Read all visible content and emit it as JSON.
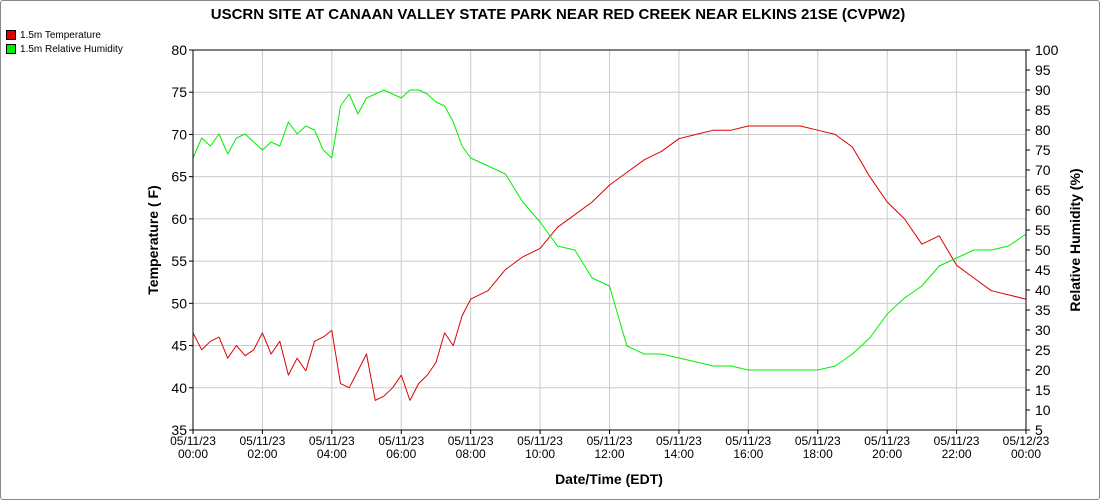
{
  "chart_data": {
    "type": "line",
    "title": "USCRN SITE AT CANAAN VALLEY STATE PARK NEAR RED CREEK NEAR ELKINS 21SE (CVPW2)",
    "xlabel": "Date/Time (EDT)",
    "ylabel_left": "Temperature ( F)",
    "ylabel_right": "Relative Humidity (%)",
    "x_ticks": [
      {
        "date": "05/11/23",
        "time": "00:00"
      },
      {
        "date": "05/11/23",
        "time": "02:00"
      },
      {
        "date": "05/11/23",
        "time": "04:00"
      },
      {
        "date": "05/11/23",
        "time": "06:00"
      },
      {
        "date": "05/11/23",
        "time": "08:00"
      },
      {
        "date": "05/11/23",
        "time": "10:00"
      },
      {
        "date": "05/11/23",
        "time": "12:00"
      },
      {
        "date": "05/11/23",
        "time": "14:00"
      },
      {
        "date": "05/11/23",
        "time": "16:00"
      },
      {
        "date": "05/11/23",
        "time": "18:00"
      },
      {
        "date": "05/11/23",
        "time": "20:00"
      },
      {
        "date": "05/11/23",
        "time": "22:00"
      },
      {
        "date": "05/12/23",
        "time": "00:00"
      }
    ],
    "xlim_hours": [
      0,
      24
    ],
    "ylim_left": [
      35,
      80
    ],
    "yticks_left": [
      35,
      40,
      45,
      50,
      55,
      60,
      65,
      70,
      75,
      80
    ],
    "ylim_right": [
      5,
      100
    ],
    "yticks_right": [
      5,
      10,
      15,
      20,
      25,
      30,
      35,
      40,
      45,
      50,
      55,
      60,
      65,
      70,
      75,
      80,
      85,
      90,
      95,
      100
    ],
    "grid": true,
    "legend_position": "top-left",
    "series": [
      {
        "name": "1.5m Temperature",
        "color": "#dd0000",
        "axis": "left",
        "x": [
          0.0,
          0.25,
          0.5,
          0.75,
          1.0,
          1.25,
          1.5,
          1.75,
          2.0,
          2.25,
          2.5,
          2.75,
          3.0,
          3.25,
          3.5,
          3.75,
          4.0,
          4.25,
          4.5,
          4.75,
          5.0,
          5.25,
          5.5,
          5.75,
          6.0,
          6.25,
          6.5,
          6.75,
          7.0,
          7.25,
          7.5,
          7.75,
          8.0,
          8.5,
          9.0,
          9.5,
          10.0,
          10.5,
          11.0,
          11.5,
          12.0,
          12.5,
          13.0,
          13.5,
          14.0,
          14.5,
          15.0,
          15.5,
          16.0,
          16.5,
          17.0,
          17.5,
          18.0,
          18.5,
          19.0,
          19.5,
          20.0,
          20.5,
          21.0,
          21.5,
          22.0,
          22.5,
          23.0,
          23.5,
          24.0
        ],
        "values": [
          46.5,
          44.5,
          45.5,
          46.0,
          43.5,
          45.0,
          43.8,
          44.5,
          46.5,
          44.0,
          45.5,
          41.5,
          43.5,
          42.0,
          45.5,
          46.0,
          46.8,
          40.5,
          40.0,
          42.0,
          44.0,
          38.5,
          39.0,
          40.0,
          41.5,
          38.5,
          40.5,
          41.5,
          43.0,
          46.5,
          45.0,
          48.5,
          50.5,
          51.5,
          54.0,
          55.5,
          56.5,
          59.0,
          60.5,
          62.0,
          64.0,
          65.5,
          67.0,
          68.0,
          69.5,
          70.0,
          70.5,
          70.5,
          71.0,
          71.0,
          71.0,
          71.0,
          70.5,
          70.0,
          68.5,
          65.0,
          62.0,
          60.0,
          57.0,
          58.0,
          54.5,
          53.0,
          51.5,
          51.0,
          50.5
        ]
      },
      {
        "name": "1.5m Relative Humidity",
        "color": "#00ee00",
        "axis": "right",
        "x": [
          0.0,
          0.25,
          0.5,
          0.75,
          1.0,
          1.25,
          1.5,
          1.75,
          2.0,
          2.25,
          2.5,
          2.75,
          3.0,
          3.25,
          3.5,
          3.75,
          4.0,
          4.25,
          4.5,
          4.75,
          5.0,
          5.25,
          5.5,
          5.75,
          6.0,
          6.25,
          6.5,
          6.75,
          7.0,
          7.25,
          7.5,
          7.75,
          8.0,
          8.5,
          9.0,
          9.5,
          10.0,
          10.5,
          11.0,
          11.5,
          12.0,
          12.5,
          13.0,
          13.5,
          14.0,
          14.5,
          15.0,
          15.5,
          16.0,
          16.5,
          17.0,
          17.5,
          18.0,
          18.5,
          19.0,
          19.5,
          20.0,
          20.5,
          21.0,
          21.5,
          22.0,
          22.5,
          23.0,
          23.5,
          24.0
        ],
        "values": [
          73,
          78,
          76,
          79,
          74,
          78,
          79,
          77,
          75,
          77,
          76,
          82,
          79,
          81,
          80,
          75,
          73,
          86,
          89,
          84,
          88,
          89,
          90,
          89,
          88,
          90,
          90,
          89,
          87,
          86,
          82,
          76,
          73,
          71,
          69,
          62,
          57,
          51,
          50,
          43,
          41,
          26,
          24,
          24,
          23,
          22,
          21,
          21,
          20,
          20,
          20,
          20,
          20,
          21,
          24,
          28,
          34,
          38,
          41,
          46,
          48,
          50,
          50,
          51,
          54
        ]
      }
    ]
  }
}
